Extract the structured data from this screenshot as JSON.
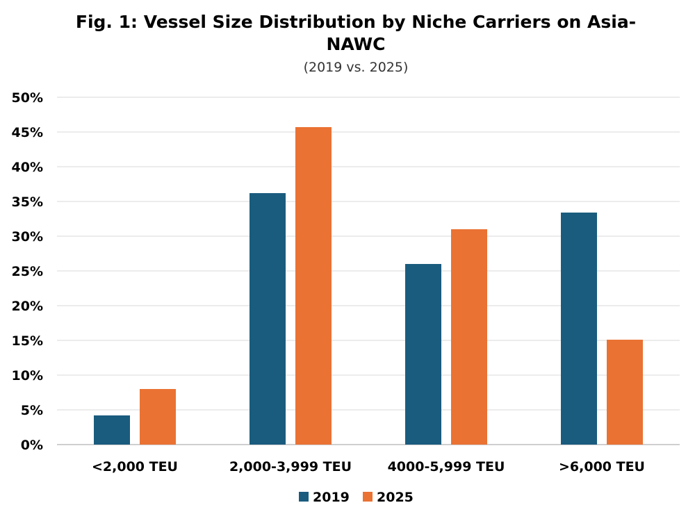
{
  "chart_data": {
    "type": "bar",
    "title_line1": "Fig. 1: Vessel Size Distribution by Niche Carriers on Asia-",
    "title_line2": "NAWC",
    "subtitle": "(2019 vs. 2025)",
    "xlabel": "",
    "ylabel": "",
    "categories": [
      "<2,000 TEU",
      "2,000-3,999 TEU",
      "4000-5,999 TEU",
      ">6,000 TEU"
    ],
    "series": [
      {
        "name": "2019",
        "color": "#1a5c7e",
        "values": [
          4.2,
          36.2,
          26.0,
          33.4
        ]
      },
      {
        "name": "2025",
        "color": "#ea7233",
        "values": [
          8.0,
          45.7,
          31.0,
          15.1
        ]
      }
    ],
    "ylim": [
      0,
      50
    ],
    "yticks": [
      0,
      5,
      10,
      15,
      20,
      25,
      30,
      35,
      40,
      45,
      50
    ],
    "ytick_labels": [
      "0%",
      "5%",
      "10%",
      "15%",
      "20%",
      "25%",
      "30%",
      "35%",
      "40%",
      "45%",
      "50%"
    ],
    "grid": true,
    "legend_position": "bottom-center"
  }
}
